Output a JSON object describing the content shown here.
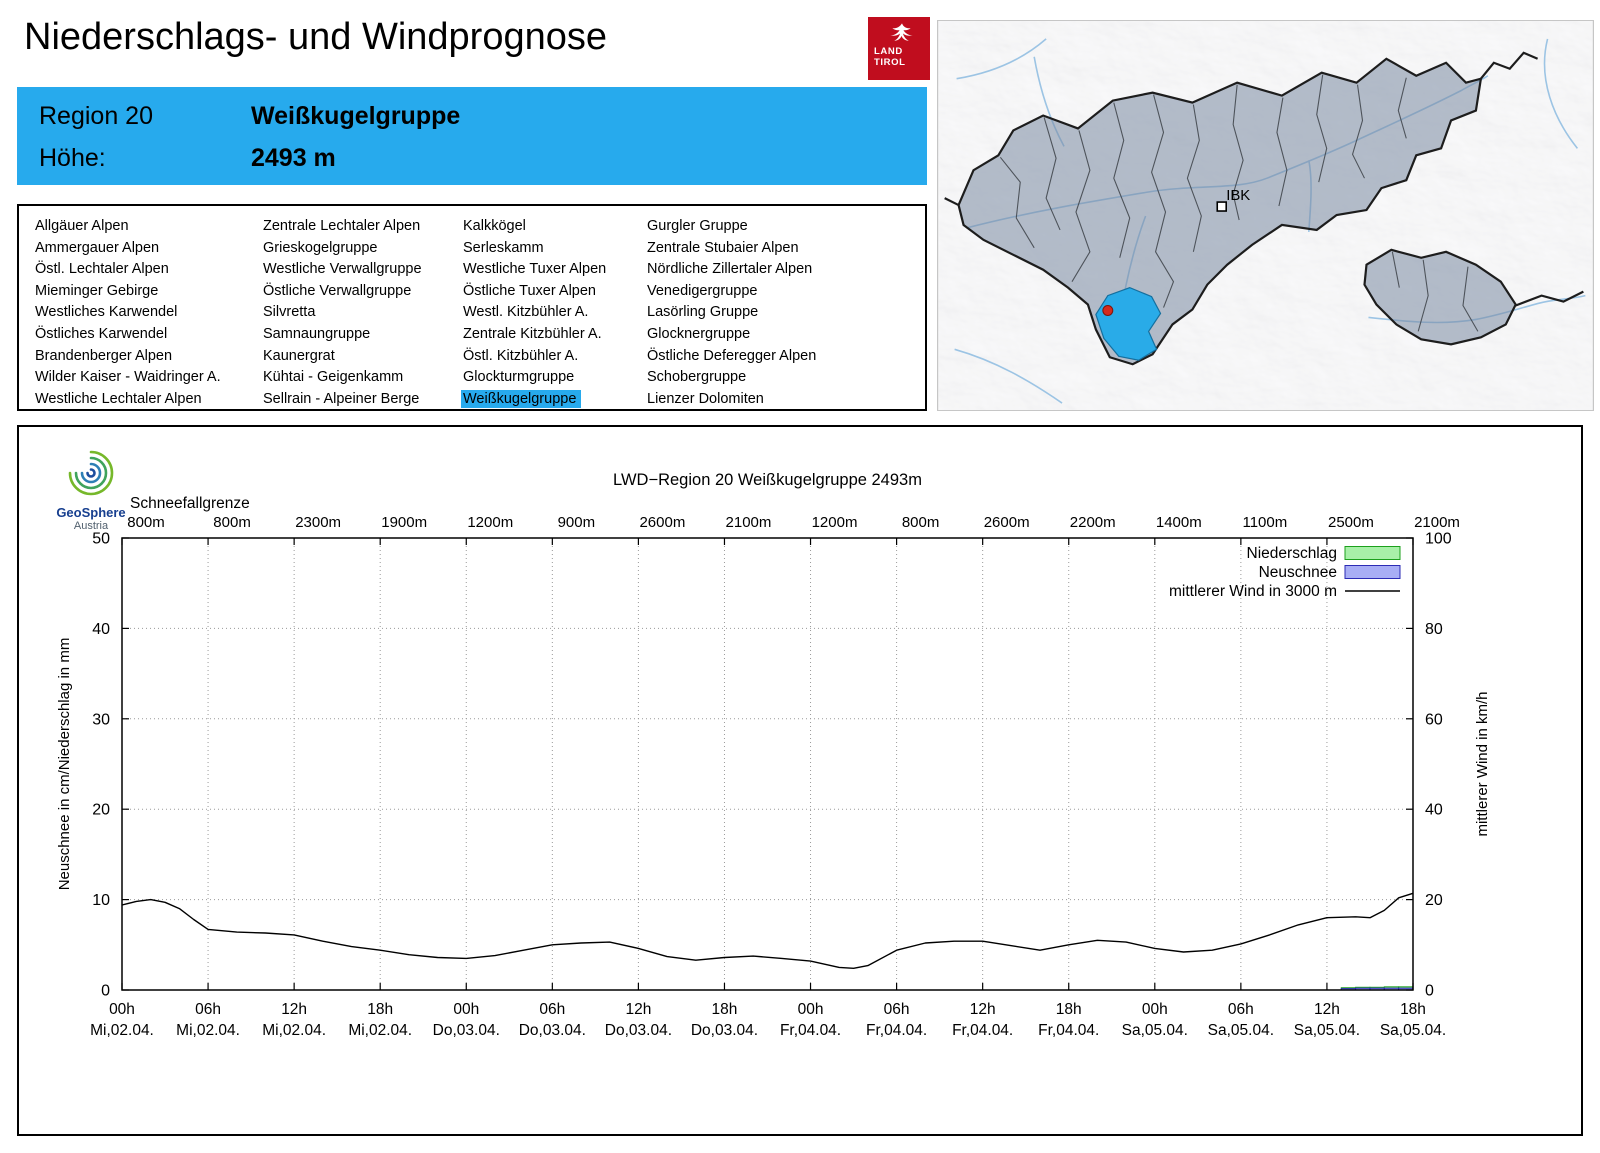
{
  "header": {
    "title": "Niederschlags- und Windprognose",
    "logo": {
      "line1": "LAND",
      "line2": "TIROL"
    }
  },
  "colors": {
    "accent_cyan": "#27aaed",
    "tirol_red": "#c00d1e",
    "map_highlight": "#29abe8"
  },
  "region_box": {
    "region_label": "Region 20",
    "region_name": "Weißkugelgruppe",
    "altitude_label": "Höhe:",
    "altitude_value": "2493 m"
  },
  "region_list": {
    "selected": "Weißkugelgruppe",
    "columns": [
      [
        "Allgäuer Alpen",
        "Ammergauer Alpen",
        "Östl. Lechtaler Alpen",
        "Mieminger Gebirge",
        "Westliches Karwendel",
        "Östliches Karwendel",
        "Brandenberger Alpen",
        "Wilder Kaiser - Waidringer A.",
        "Westliche Lechtaler Alpen"
      ],
      [
        "Zentrale Lechtaler Alpen",
        "Grieskogelgruppe",
        "Westliche Verwallgruppe",
        "Östliche Verwallgruppe",
        "Silvretta",
        "Samnaungruppe",
        "Kaunergrat",
        "Kühtai - Geigenkamm",
        "Sellrain - Alpeiner Berge"
      ],
      [
        "Kalkkögel",
        "Serleskamm",
        "Westliche Tuxer Alpen",
        "Östliche Tuxer Alpen",
        "Westl. Kitzbühler A.",
        "Zentrale Kitzbühler A.",
        "Östl. Kitzbühler A.",
        "Glockturmgruppe",
        "Weißkugelgruppe"
      ],
      [
        "Gurgler Gruppe",
        "Zentrale Stubaier Alpen",
        "Nördliche Zillertaler Alpen",
        "Venedigergruppe",
        "Lasörling Gruppe",
        "Glocknergruppe",
        "Östliche Deferegger Alpen",
        "Schobergruppe",
        "Lienzer Dolomiten"
      ]
    ]
  },
  "map": {
    "city_label": "IBK"
  },
  "brand": {
    "geosphere": "GeoSphere",
    "austria": "Austria"
  },
  "chart_data": {
    "type": "line",
    "title": "LWD−Region 20 Weißkugelgruppe 2493m",
    "snowline_label": "Schneefallgrenze",
    "snowline_values": [
      "800m",
      "800m",
      "2300m",
      "1900m",
      "1200m",
      "900m",
      "2600m",
      "2100m",
      "1200m",
      "800m",
      "2600m",
      "2200m",
      "1400m",
      "1100m",
      "2500m",
      "2100m"
    ],
    "x_range_hours": [
      0,
      90
    ],
    "x_ticks": [
      {
        "hour": "00h",
        "day": "Mi,02.04."
      },
      {
        "hour": "06h",
        "day": "Mi,02.04."
      },
      {
        "hour": "12h",
        "day": "Mi,02.04."
      },
      {
        "hour": "18h",
        "day": "Mi,02.04."
      },
      {
        "hour": "00h",
        "day": "Do,03.04."
      },
      {
        "hour": "06h",
        "day": "Do,03.04."
      },
      {
        "hour": "12h",
        "day": "Do,03.04."
      },
      {
        "hour": "18h",
        "day": "Do,03.04."
      },
      {
        "hour": "00h",
        "day": "Fr,04.04."
      },
      {
        "hour": "06h",
        "day": "Fr,04.04."
      },
      {
        "hour": "12h",
        "day": "Fr,04.04."
      },
      {
        "hour": "18h",
        "day": "Fr,04.04."
      },
      {
        "hour": "00h",
        "day": "Sa,05.04."
      },
      {
        "hour": "06h",
        "day": "Sa,05.04."
      },
      {
        "hour": "12h",
        "day": "Sa,05.04."
      },
      {
        "hour": "18h",
        "day": "Sa,05.04."
      }
    ],
    "y_left": {
      "label": "Neuschnee in cm/Niederschlag in mm",
      "min": 0,
      "max": 50,
      "ticks": [
        0,
        10,
        20,
        30,
        40,
        50
      ]
    },
    "y_right": {
      "label": "mittlerer Wind in km/h",
      "min": 0,
      "max": 100,
      "ticks": [
        0,
        20,
        40,
        60,
        80,
        100
      ]
    },
    "grid": true,
    "legend_position": "top-right",
    "legend": [
      {
        "label": "Niederschlag",
        "type": "box",
        "fill": "#a8f0a8",
        "border": "#1ca01c"
      },
      {
        "label": "Neuschnee",
        "type": "box",
        "fill": "#a8aef5",
        "border": "#2b2bb5"
      },
      {
        "label": "mittlerer Wind in 3000 m",
        "type": "line",
        "color": "#000000"
      }
    ],
    "wind_kmh": [
      [
        0,
        18.8
      ],
      [
        1,
        19.6
      ],
      [
        2,
        20.0
      ],
      [
        3,
        19.4
      ],
      [
        4,
        18.0
      ],
      [
        5,
        15.6
      ],
      [
        6,
        13.4
      ],
      [
        8,
        12.8
      ],
      [
        10,
        12.6
      ],
      [
        12,
        12.2
      ],
      [
        14,
        10.8
      ],
      [
        16,
        9.6
      ],
      [
        18,
        8.8
      ],
      [
        20,
        7.8
      ],
      [
        22,
        7.2
      ],
      [
        24,
        7.0
      ],
      [
        26,
        7.6
      ],
      [
        28,
        8.8
      ],
      [
        30,
        10.0
      ],
      [
        32,
        10.4
      ],
      [
        34,
        10.6
      ],
      [
        36,
        9.2
      ],
      [
        38,
        7.4
      ],
      [
        40,
        6.6
      ],
      [
        42,
        7.2
      ],
      [
        44,
        7.5
      ],
      [
        46,
        7.0
      ],
      [
        48,
        6.4
      ],
      [
        50,
        5.0
      ],
      [
        51,
        4.8
      ],
      [
        52,
        5.4
      ],
      [
        54,
        8.8
      ],
      [
        56,
        10.4
      ],
      [
        58,
        10.8
      ],
      [
        60,
        10.8
      ],
      [
        62,
        9.8
      ],
      [
        64,
        8.8
      ],
      [
        66,
        10.0
      ],
      [
        68,
        11.0
      ],
      [
        70,
        10.6
      ],
      [
        72,
        9.2
      ],
      [
        74,
        8.4
      ],
      [
        76,
        8.8
      ],
      [
        78,
        10.2
      ],
      [
        80,
        12.2
      ],
      [
        82,
        14.4
      ],
      [
        84,
        16.0
      ],
      [
        86,
        16.2
      ],
      [
        87,
        16.0
      ],
      [
        88,
        17.6
      ],
      [
        89,
        20.4
      ],
      [
        90,
        21.4
      ]
    ],
    "niederschlag_mm": [
      [
        86,
        0.25
      ],
      [
        87,
        0.3
      ],
      [
        88,
        0.3
      ],
      [
        89,
        0.35
      ],
      [
        90,
        0.35
      ]
    ],
    "neuschnee_cm": [
      [
        86,
        0.15
      ],
      [
        87,
        0.2
      ],
      [
        88,
        0.2
      ],
      [
        89,
        0.2
      ],
      [
        90,
        0.2
      ]
    ]
  }
}
